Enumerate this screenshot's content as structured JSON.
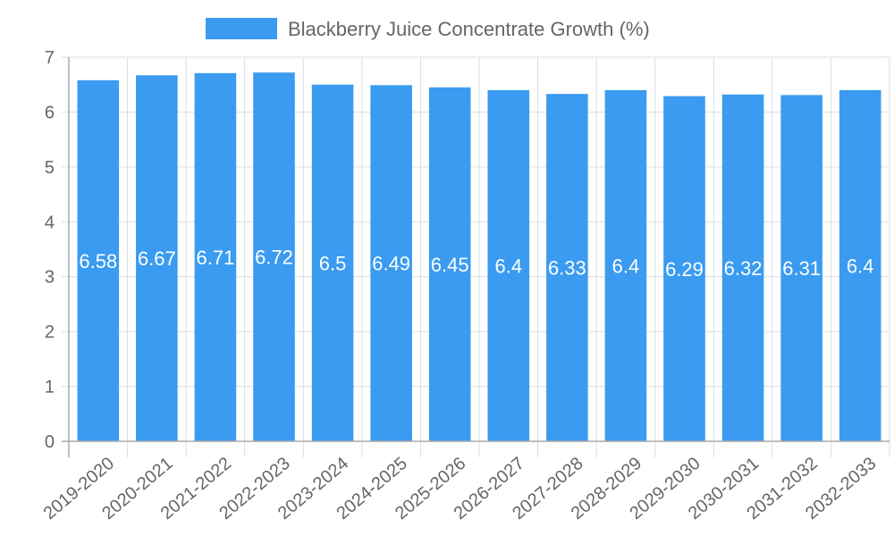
{
  "chart_data": {
    "type": "bar",
    "title": "",
    "legend": {
      "label": "Blackberry Juice Concentrate Growth (%)",
      "placement": "top-center",
      "color": "#3a9bf0"
    },
    "categories": [
      "2019-2020",
      "2020-2021",
      "2021-2022",
      "2022-2023",
      "2023-2024",
      "2024-2025",
      "2025-2026",
      "2026-2027",
      "2027-2028",
      "2028-2029",
      "2029-2030",
      "2030-2031",
      "2031-2032",
      "2032-2033"
    ],
    "values": [
      6.58,
      6.67,
      6.71,
      6.72,
      6.5,
      6.49,
      6.45,
      6.4,
      6.33,
      6.4,
      6.29,
      6.32,
      6.31,
      6.4
    ],
    "data_labels": [
      "6.58",
      "6.67",
      "6.71",
      "6.72",
      "6.5",
      "6.49",
      "6.45",
      "6.4",
      "6.33",
      "6.4",
      "6.29",
      "6.32",
      "6.31",
      "6.4"
    ],
    "xlabel": "",
    "ylabel": "",
    "ylim": [
      0,
      7
    ],
    "yticks": [
      "0",
      "1",
      "2",
      "3",
      "4",
      "5",
      "6",
      "7"
    ],
    "grid": true,
    "bar_color": "#3a9bf0"
  }
}
